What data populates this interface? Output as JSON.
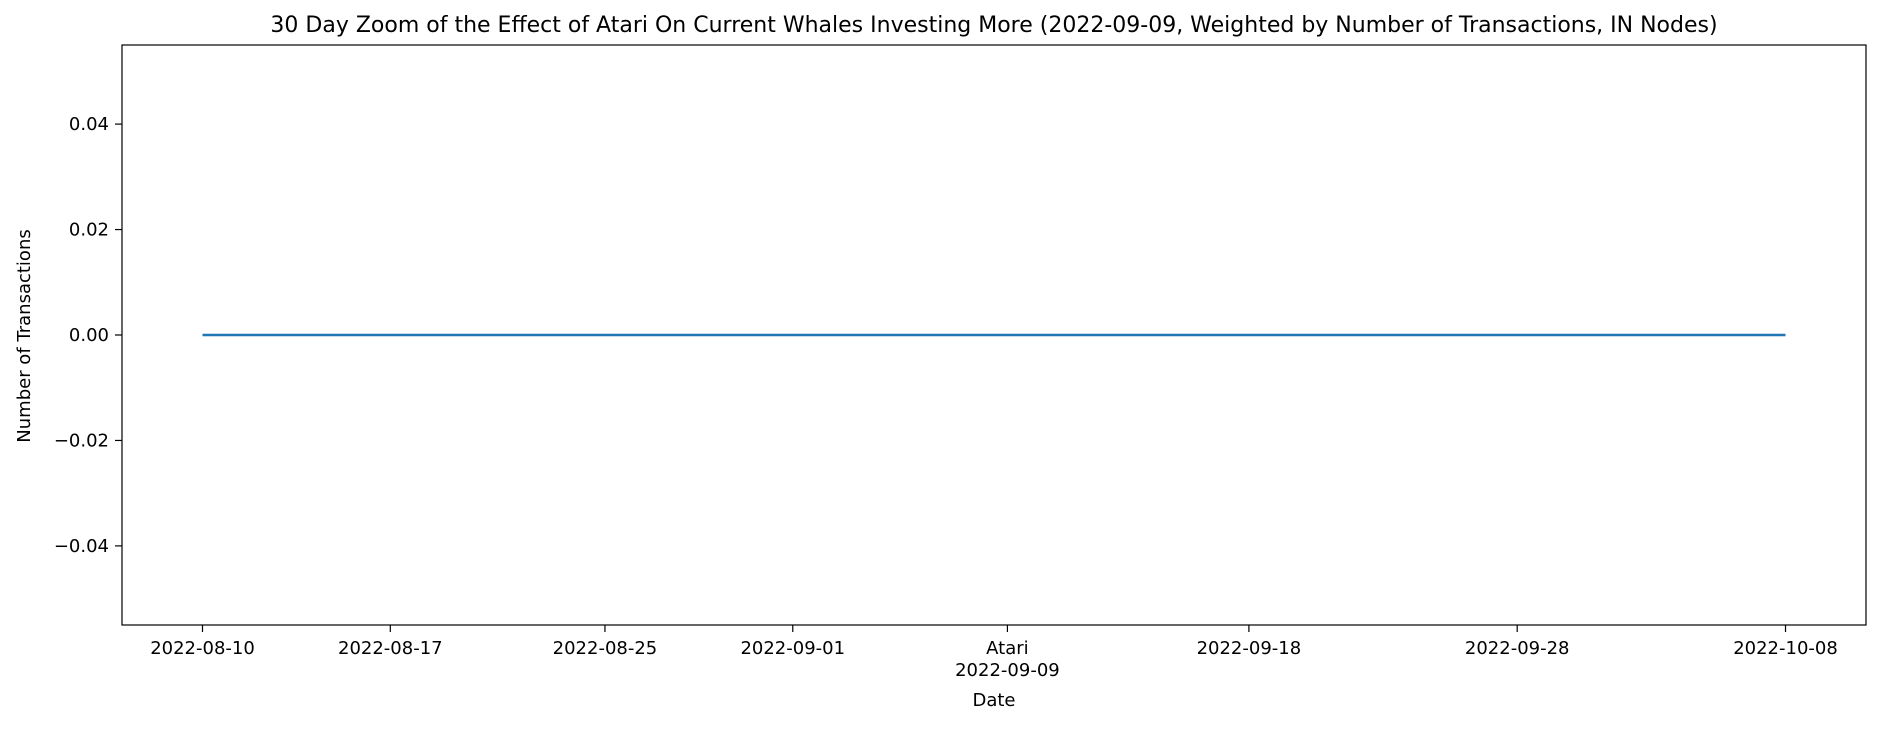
{
  "chart_data": {
    "type": "line",
    "title": "30 Day Zoom of the Effect of Atari On Current Whales Investing More (2022-09-09, Weighted by Number of Transactions, IN Nodes)",
    "xlabel": "Date",
    "ylabel": "Number of Transactions",
    "x_start": "2022-08-10",
    "x_end": "2022-10-08",
    "xlim": [
      "2022-08-07",
      "2022-10-11"
    ],
    "ylim": [
      -0.055,
      0.055
    ],
    "grid": false,
    "legend": "none",
    "x_ticks": [
      {
        "date": "2022-08-10",
        "label": "2022-08-10"
      },
      {
        "date": "2022-08-17",
        "label": "2022-08-17"
      },
      {
        "date": "2022-08-25",
        "label": "2022-08-25"
      },
      {
        "date": "2022-09-01",
        "label": "2022-09-01"
      },
      {
        "date": "2022-09-09",
        "label": "2022-09-09"
      },
      {
        "date": "2022-09-18",
        "label": "2022-09-18"
      },
      {
        "date": "2022-09-28",
        "label": "2022-09-28"
      },
      {
        "date": "2022-10-08",
        "label": "2022-10-08"
      }
    ],
    "y_ticks": [
      {
        "value": 0.04,
        "label": "0.04"
      },
      {
        "value": 0.02,
        "label": "0.02"
      },
      {
        "value": 0.0,
        "label": "0.00"
      },
      {
        "value": -0.02,
        "label": "−0.02"
      },
      {
        "value": -0.04,
        "label": "−0.04"
      }
    ],
    "annotations": [
      {
        "date": "2022-09-09",
        "text": "Atari"
      }
    ],
    "series": [
      {
        "color": "#1f77b4",
        "x": [
          "2022-08-10",
          "2022-10-08"
        ],
        "y": [
          0,
          0
        ]
      }
    ]
  }
}
